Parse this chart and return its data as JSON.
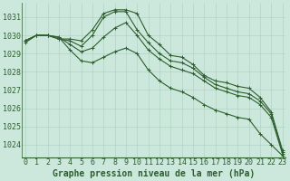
{
  "title": "Graphe pression niveau de la mer (hPa)",
  "background_color": "#cce8dc",
  "grid_color": "#aacfbc",
  "line_color": "#2d5e2d",
  "x_labels": [
    "0",
    "1",
    "2",
    "3",
    "4",
    "5",
    "6",
    "7",
    "8",
    "9",
    "10",
    "11",
    "12",
    "13",
    "14",
    "15",
    "16",
    "17",
    "18",
    "19",
    "20",
    "21",
    "22",
    "23"
  ],
  "series": [
    {
      "y": [
        1029.7,
        1030.0,
        1030.0,
        1029.8,
        1029.8,
        1029.7,
        1030.3,
        1031.2,
        1031.4,
        1031.4,
        1031.2,
        1030.0,
        1029.5,
        1028.9,
        1028.8,
        1028.4,
        1027.8,
        1027.5,
        1027.4,
        1027.2,
        1027.1,
        1026.6,
        1025.8,
        1023.7
      ],
      "marker": "+"
    },
    {
      "y": [
        1029.7,
        1030.0,
        1030.0,
        1029.8,
        1029.7,
        1029.4,
        1030.0,
        1031.0,
        1031.3,
        1031.3,
        1030.3,
        1029.6,
        1029.0,
        1028.6,
        1028.5,
        1028.2,
        1027.7,
        1027.3,
        1027.1,
        1026.9,
        1026.8,
        1026.4,
        1025.7,
        1023.6
      ],
      "marker": "+"
    },
    {
      "y": [
        1029.7,
        1030.0,
        1030.0,
        1029.9,
        1029.5,
        1029.1,
        1029.3,
        1029.9,
        1030.4,
        1030.7,
        1030.0,
        1029.2,
        1028.7,
        1028.3,
        1028.1,
        1027.9,
        1027.5,
        1027.1,
        1026.9,
        1026.7,
        1026.6,
        1026.2,
        1025.5,
        1023.5
      ],
      "marker": "+"
    },
    {
      "y": [
        1029.6,
        1030.0,
        1030.0,
        1029.9,
        1029.2,
        1028.6,
        1028.5,
        1028.8,
        1029.1,
        1029.3,
        1029.0,
        1028.1,
        1027.5,
        1027.1,
        1026.9,
        1026.6,
        1026.2,
        1025.9,
        1025.7,
        1025.5,
        1025.4,
        1024.6,
        1024.0,
        1023.4
      ],
      "marker": "+"
    }
  ],
  "ylim": [
    1023.3,
    1031.8
  ],
  "yticks": [
    1024,
    1025,
    1026,
    1027,
    1028,
    1029,
    1030,
    1031
  ],
  "line_width": 0.8,
  "marker_size": 3,
  "xlabel_fontsize": 6,
  "ylabel_fontsize": 6,
  "title_fontsize": 7
}
